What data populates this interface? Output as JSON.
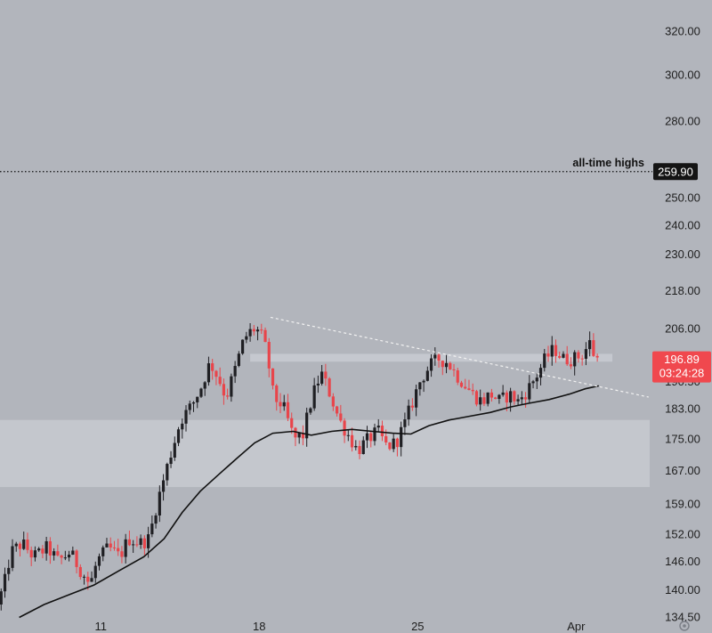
{
  "chart_data": {
    "type": "candlestick",
    "y_scale": "log",
    "ylim": [
      131,
      335
    ],
    "yticks": [
      "320.00",
      "300.00",
      "280.00",
      "250.00",
      "240.00",
      "230.00",
      "218.00",
      "206.00",
      "190.50",
      "183.00",
      "175.00",
      "167.00",
      "159.00",
      "152.00",
      "146.00",
      "140.00",
      "134.50"
    ],
    "xticks": [
      {
        "label": "11",
        "pos": 11
      },
      {
        "label": "18",
        "pos": 18
      },
      {
        "label": "25",
        "pos": 25
      },
      {
        "label": "Apr",
        "pos": 32
      }
    ],
    "xlim": [
      6.55,
      38
    ],
    "annotations": {
      "all_time_high": {
        "label": "all-time highs",
        "value": 259.9,
        "badge": "259.90"
      },
      "current_price": {
        "value": 196.89,
        "badge": "196.89",
        "countdown": "03:24:28"
      },
      "demand_zone": {
        "low": 163,
        "high": 180
      },
      "resistance_band": {
        "low": 196.2,
        "high": 198.5
      },
      "descending_trendline": {
        "start": [
          18.5,
          209.5
        ],
        "end": [
          35.2,
          186.2
        ]
      }
    },
    "anchors": [
      [
        6.6,
        137
      ],
      [
        6.9,
        141
      ],
      [
        7.2,
        148
      ],
      [
        7.7,
        150
      ],
      [
        8.2,
        147
      ],
      [
        8.8,
        149
      ],
      [
        9.3,
        146
      ],
      [
        9.8,
        148
      ],
      [
        10.3,
        144
      ],
      [
        10.7,
        141
      ],
      [
        11.0,
        146
      ],
      [
        11.5,
        149
      ],
      [
        12.0,
        147
      ],
      [
        12.4,
        151
      ],
      [
        12.9,
        150
      ],
      [
        13.3,
        151
      ],
      [
        13.6,
        158
      ],
      [
        14.0,
        166
      ],
      [
        14.4,
        174
      ],
      [
        14.7,
        180
      ],
      [
        15.2,
        184
      ],
      [
        15.6,
        189
      ],
      [
        16.0,
        196
      ],
      [
        16.4,
        191
      ],
      [
        16.7,
        186
      ],
      [
        17.1,
        194
      ],
      [
        17.5,
        203
      ],
      [
        17.9,
        206
      ],
      [
        18.2,
        205
      ],
      [
        18.5,
        199
      ],
      [
        18.8,
        186
      ],
      [
        19.2,
        184
      ],
      [
        19.7,
        175
      ],
      [
        20.1,
        176
      ],
      [
        20.5,
        186
      ],
      [
        20.9,
        193
      ],
      [
        21.3,
        187
      ],
      [
        21.7,
        180
      ],
      [
        22.1,
        176
      ],
      [
        22.5,
        172
      ],
      [
        23.0,
        175
      ],
      [
        23.4,
        177
      ],
      [
        23.8,
        173
      ],
      [
        24.2,
        174
      ],
      [
        24.6,
        179
      ],
      [
        25.0,
        186
      ],
      [
        25.3,
        191
      ],
      [
        25.7,
        195
      ],
      [
        26.1,
        197
      ],
      [
        26.5,
        196
      ],
      [
        26.8,
        193
      ],
      [
        27.2,
        190
      ],
      [
        27.6,
        187
      ],
      [
        28.0,
        185
      ],
      [
        28.4,
        187
      ],
      [
        28.8,
        185
      ],
      [
        29.2,
        187
      ],
      [
        29.6,
        185
      ],
      [
        30.0,
        188
      ],
      [
        30.4,
        192
      ],
      [
        30.8,
        197
      ],
      [
        31.2,
        200
      ],
      [
        31.6,
        197
      ],
      [
        32.0,
        197
      ],
      [
        32.4,
        198
      ],
      [
        32.8,
        202
      ],
      [
        33.0,
        197
      ]
    ],
    "ma_line": [
      [
        7.4,
        134.4
      ],
      [
        8.5,
        137
      ],
      [
        9.6,
        139
      ],
      [
        10.7,
        141
      ],
      [
        11.8,
        144
      ],
      [
        12.9,
        147
      ],
      [
        13.8,
        151
      ],
      [
        14.6,
        157
      ],
      [
        15.4,
        162
      ],
      [
        16.2,
        166
      ],
      [
        17.0,
        170
      ],
      [
        17.8,
        174
      ],
      [
        18.6,
        176.5
      ],
      [
        19.5,
        177
      ],
      [
        20.3,
        176
      ],
      [
        21.2,
        177
      ],
      [
        22.1,
        177.5
      ],
      [
        23.0,
        177
      ],
      [
        23.9,
        176.5
      ],
      [
        24.7,
        176.3
      ],
      [
        25.5,
        178.5
      ],
      [
        26.4,
        180
      ],
      [
        27.3,
        181
      ],
      [
        28.2,
        182
      ],
      [
        29.1,
        183.5
      ],
      [
        29.9,
        184.5
      ],
      [
        30.8,
        185.5
      ],
      [
        31.7,
        187
      ],
      [
        32.4,
        188.5
      ],
      [
        33.0,
        189.3
      ]
    ]
  }
}
